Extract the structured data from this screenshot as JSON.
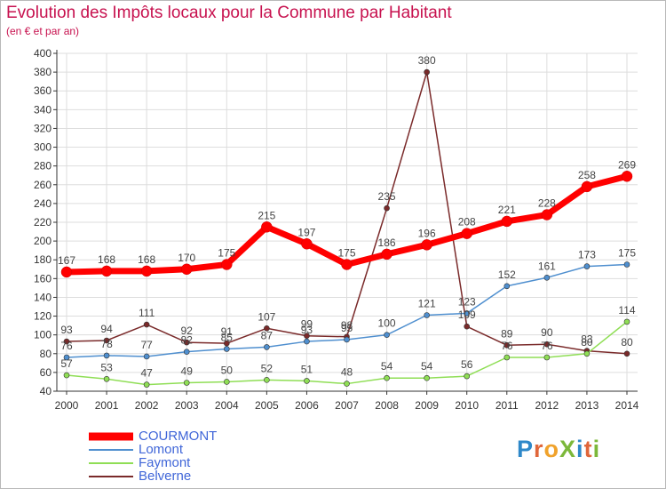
{
  "header": {
    "title": "Evolution des Impôts locaux pour la Commune par Habitant",
    "subtitle": "(en € et par an)"
  },
  "logo": {
    "text": "ProXiti",
    "letters": [
      {
        "ch": "P",
        "color": "#2e88c9"
      },
      {
        "ch": "r",
        "color": "#e0663a"
      },
      {
        "ch": "o",
        "color": "#f0a22b"
      },
      {
        "ch": "X",
        "color": "#7cb83a"
      },
      {
        "ch": "i",
        "color": "#2e88c9"
      },
      {
        "ch": "t",
        "color": "#e0663a"
      },
      {
        "ch": "i",
        "color": "#7cb83a"
      }
    ]
  },
  "colors": {
    "title": "#c7124f",
    "axis": "#333333",
    "grid": "#dddddd",
    "legend_text": "#4066d8"
  },
  "chart_data": {
    "type": "line",
    "title": "Evolution des Impôts locaux pour la Commune par Habitant",
    "subtitle": "(en € et par an)",
    "xlabel": "",
    "ylabel": "",
    "ylim": [
      40,
      400
    ],
    "yticks": [
      40,
      60,
      80,
      100,
      120,
      140,
      160,
      180,
      200,
      220,
      240,
      260,
      280,
      300,
      320,
      340,
      360,
      380,
      400
    ],
    "x": [
      "2000",
      "2001",
      "2002",
      "2003",
      "2004",
      "2005",
      "2006",
      "2007",
      "2008",
      "2009",
      "2010",
      "2011",
      "2012",
      "2013",
      "2014"
    ],
    "grid": true,
    "legend_position": "bottom-left",
    "series": [
      {
        "name": "COURMONT",
        "color": "#ff0000",
        "values": [
          167,
          168,
          168,
          170,
          175,
          215,
          197,
          175,
          186,
          196,
          208,
          221,
          228,
          258,
          269
        ],
        "labels": [
          "167",
          "168",
          "168",
          "170",
          "175",
          "215",
          "197",
          "175",
          "186",
          "196",
          "208",
          "221",
          "228",
          "258",
          "269"
        ]
      },
      {
        "name": "Lomont",
        "color": "#4f8fcf",
        "values": [
          76,
          78,
          77,
          82,
          85,
          87,
          93,
          95,
          100,
          121,
          123,
          152,
          161,
          173,
          175
        ],
        "labels": [
          "76",
          "78",
          "77",
          "82",
          "85",
          "87",
          "93",
          "95",
          "100",
          "121",
          "123",
          "152",
          "161",
          "173",
          "175"
        ]
      },
      {
        "name": "Faymont",
        "color": "#8fde55",
        "values": [
          57,
          53,
          47,
          49,
          50,
          52,
          51,
          48,
          54,
          54,
          56,
          76,
          76,
          80,
          114
        ],
        "labels": [
          "57",
          "53",
          "47",
          "49",
          "50",
          "52",
          "51",
          "48",
          "54",
          "54",
          "56",
          "76",
          "76",
          "80",
          "114"
        ]
      },
      {
        "name": "Belverne",
        "color": "#7a2a2a",
        "values": [
          93,
          94,
          111,
          92,
          91,
          107,
          99,
          98,
          235,
          380,
          109,
          89,
          90,
          83,
          80
        ],
        "labels": [
          "93",
          "94",
          "111",
          "92",
          "91",
          "107",
          "99",
          "98",
          "235",
          "380",
          "109",
          "89",
          "90",
          "83",
          "80"
        ]
      }
    ]
  }
}
